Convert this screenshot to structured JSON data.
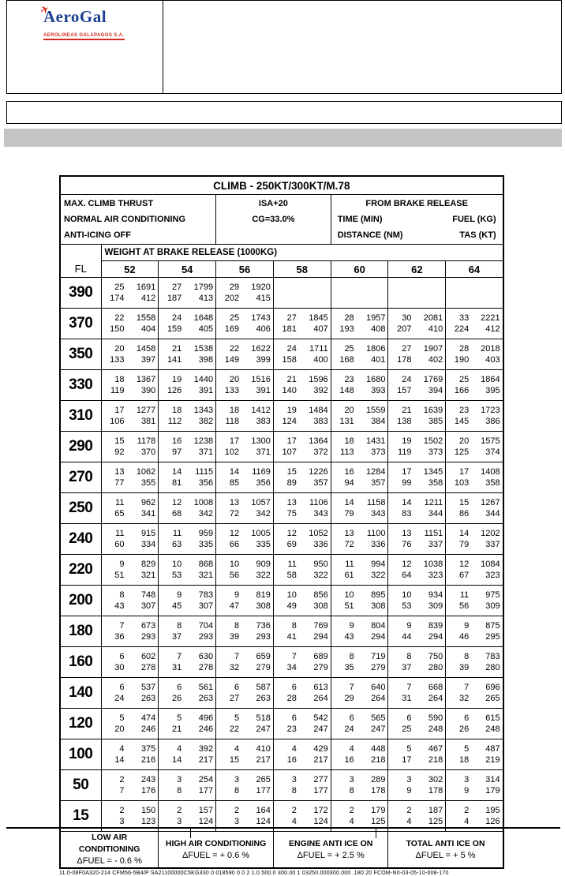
{
  "header": {
    "logo": {
      "brand": "AeroGal",
      "subtitle": "AEROLINEAS GALAPAGOS S.A."
    }
  },
  "table": {
    "title": "CLIMB - 250KT/300KT/M.78",
    "conditions": {
      "left": [
        "MAX. CLIMB THRUST",
        "NORMAL AIR CONDITIONING",
        "ANTI-ICING OFF"
      ],
      "middle": [
        "ISA+20",
        "CG=33.0%"
      ],
      "right": {
        "title": "FROM BRAKE RELEASE",
        "rows": [
          [
            "TIME (MIN)",
            "FUEL (KG)"
          ],
          [
            "DISTANCE (NM)",
            "TAS (KT)"
          ]
        ]
      }
    },
    "weight_header": "WEIGHT AT BRAKE RELEASE (1000KG)",
    "fl_label": "FL",
    "weights": [
      "52",
      "54",
      "56",
      "58",
      "60",
      "62",
      "64"
    ],
    "rows": [
      {
        "fl": "390",
        "cells": [
          [
            "25",
            "1691",
            "174",
            "412"
          ],
          [
            "27",
            "1799",
            "187",
            "413"
          ],
          [
            "29",
            "1920",
            "202",
            "415"
          ],
          null,
          null,
          null,
          null
        ]
      },
      {
        "fl": "370",
        "cells": [
          [
            "22",
            "1558",
            "150",
            "404"
          ],
          [
            "24",
            "1648",
            "159",
            "405"
          ],
          [
            "25",
            "1743",
            "169",
            "406"
          ],
          [
            "27",
            "1845",
            "181",
            "407"
          ],
          [
            "28",
            "1957",
            "193",
            "408"
          ],
          [
            "30",
            "2081",
            "207",
            "410"
          ],
          [
            "33",
            "2221",
            "224",
            "412"
          ]
        ]
      },
      {
        "fl": "350",
        "cells": [
          [
            "20",
            "1458",
            "133",
            "397"
          ],
          [
            "21",
            "1538",
            "141",
            "398"
          ],
          [
            "22",
            "1622",
            "149",
            "399"
          ],
          [
            "24",
            "1711",
            "158",
            "400"
          ],
          [
            "25",
            "1806",
            "168",
            "401"
          ],
          [
            "27",
            "1907",
            "178",
            "402"
          ],
          [
            "28",
            "2018",
            "190",
            "403"
          ]
        ]
      },
      {
        "fl": "330",
        "cells": [
          [
            "18",
            "1367",
            "119",
            "390"
          ],
          [
            "19",
            "1440",
            "126",
            "391"
          ],
          [
            "20",
            "1516",
            "133",
            "391"
          ],
          [
            "21",
            "1596",
            "140",
            "392"
          ],
          [
            "23",
            "1680",
            "148",
            "393"
          ],
          [
            "24",
            "1769",
            "157",
            "394"
          ],
          [
            "25",
            "1864",
            "166",
            "395"
          ]
        ]
      },
      {
        "fl": "310",
        "cells": [
          [
            "17",
            "1277",
            "106",
            "381"
          ],
          [
            "18",
            "1343",
            "112",
            "382"
          ],
          [
            "18",
            "1412",
            "118",
            "383"
          ],
          [
            "19",
            "1484",
            "124",
            "383"
          ],
          [
            "20",
            "1559",
            "131",
            "384"
          ],
          [
            "21",
            "1639",
            "138",
            "385"
          ],
          [
            "23",
            "1723",
            "145",
            "386"
          ]
        ]
      },
      {
        "fl": "290",
        "cells": [
          [
            "15",
            "1178",
            "92",
            "370"
          ],
          [
            "16",
            "1238",
            "97",
            "371"
          ],
          [
            "17",
            "1300",
            "102",
            "371"
          ],
          [
            "17",
            "1364",
            "107",
            "372"
          ],
          [
            "18",
            "1431",
            "113",
            "373"
          ],
          [
            "19",
            "1502",
            "119",
            "373"
          ],
          [
            "20",
            "1575",
            "125",
            "374"
          ]
        ]
      },
      {
        "fl": "270",
        "cells": [
          [
            "13",
            "1062",
            "77",
            "355"
          ],
          [
            "14",
            "1115",
            "81",
            "356"
          ],
          [
            "14",
            "1169",
            "85",
            "356"
          ],
          [
            "15",
            "1226",
            "89",
            "357"
          ],
          [
            "16",
            "1284",
            "94",
            "357"
          ],
          [
            "17",
            "1345",
            "99",
            "358"
          ],
          [
            "17",
            "1408",
            "103",
            "358"
          ]
        ]
      },
      {
        "fl": "250",
        "cells": [
          [
            "11",
            "962",
            "65",
            "341"
          ],
          [
            "12",
            "1008",
            "68",
            "342"
          ],
          [
            "13",
            "1057",
            "72",
            "342"
          ],
          [
            "13",
            "1106",
            "75",
            "343"
          ],
          [
            "14",
            "1158",
            "79",
            "343"
          ],
          [
            "14",
            "1211",
            "83",
            "344"
          ],
          [
            "15",
            "1267",
            "86",
            "344"
          ]
        ]
      },
      {
        "fl": "240",
        "cells": [
          [
            "11",
            "915",
            "60",
            "334"
          ],
          [
            "11",
            "959",
            "63",
            "335"
          ],
          [
            "12",
            "1005",
            "66",
            "335"
          ],
          [
            "12",
            "1052",
            "69",
            "336"
          ],
          [
            "13",
            "1100",
            "72",
            "336"
          ],
          [
            "13",
            "1151",
            "76",
            "337"
          ],
          [
            "14",
            "1202",
            "79",
            "337"
          ]
        ]
      },
      {
        "fl": "220",
        "cells": [
          [
            "9",
            "829",
            "51",
            "321"
          ],
          [
            "10",
            "868",
            "53",
            "321"
          ],
          [
            "10",
            "909",
            "56",
            "322"
          ],
          [
            "11",
            "950",
            "58",
            "322"
          ],
          [
            "11",
            "994",
            "61",
            "322"
          ],
          [
            "12",
            "1038",
            "64",
            "323"
          ],
          [
            "12",
            "1084",
            "67",
            "323"
          ]
        ]
      },
      {
        "fl": "200",
        "cells": [
          [
            "8",
            "748",
            "43",
            "307"
          ],
          [
            "9",
            "783",
            "45",
            "307"
          ],
          [
            "9",
            "819",
            "47",
            "308"
          ],
          [
            "10",
            "856",
            "49",
            "308"
          ],
          [
            "10",
            "895",
            "51",
            "308"
          ],
          [
            "10",
            "934",
            "53",
            "309"
          ],
          [
            "11",
            "975",
            "56",
            "309"
          ]
        ]
      },
      {
        "fl": "180",
        "cells": [
          [
            "7",
            "673",
            "36",
            "293"
          ],
          [
            "8",
            "704",
            "37",
            "293"
          ],
          [
            "8",
            "736",
            "39",
            "293"
          ],
          [
            "8",
            "769",
            "41",
            "294"
          ],
          [
            "9",
            "804",
            "43",
            "294"
          ],
          [
            "9",
            "839",
            "44",
            "294"
          ],
          [
            "9",
            "875",
            "46",
            "295"
          ]
        ]
      },
      {
        "fl": "160",
        "cells": [
          [
            "6",
            "602",
            "30",
            "278"
          ],
          [
            "7",
            "630",
            "31",
            "278"
          ],
          [
            "7",
            "659",
            "32",
            "279"
          ],
          [
            "7",
            "689",
            "34",
            "279"
          ],
          [
            "8",
            "719",
            "35",
            "279"
          ],
          [
            "8",
            "750",
            "37",
            "280"
          ],
          [
            "8",
            "783",
            "39",
            "280"
          ]
        ]
      },
      {
        "fl": "140",
        "cells": [
          [
            "6",
            "537",
            "24",
            "263"
          ],
          [
            "6",
            "561",
            "26",
            "263"
          ],
          [
            "6",
            "587",
            "27",
            "263"
          ],
          [
            "6",
            "613",
            "28",
            "264"
          ],
          [
            "7",
            "640",
            "29",
            "264"
          ],
          [
            "7",
            "668",
            "31",
            "264"
          ],
          [
            "7",
            "696",
            "32",
            "265"
          ]
        ]
      },
      {
        "fl": "120",
        "cells": [
          [
            "5",
            "474",
            "20",
            "246"
          ],
          [
            "5",
            "496",
            "21",
            "246"
          ],
          [
            "5",
            "518",
            "22",
            "247"
          ],
          [
            "6",
            "542",
            "23",
            "247"
          ],
          [
            "6",
            "565",
            "24",
            "247"
          ],
          [
            "6",
            "590",
            "25",
            "248"
          ],
          [
            "6",
            "615",
            "26",
            "248"
          ]
        ]
      },
      {
        "fl": "100",
        "cells": [
          [
            "4",
            "375",
            "14",
            "216"
          ],
          [
            "4",
            "392",
            "14",
            "217"
          ],
          [
            "4",
            "410",
            "15",
            "217"
          ],
          [
            "4",
            "429",
            "16",
            "217"
          ],
          [
            "4",
            "448",
            "16",
            "218"
          ],
          [
            "5",
            "467",
            "17",
            "218"
          ],
          [
            "5",
            "487",
            "18",
            "219"
          ]
        ]
      },
      {
        "fl": "50",
        "cells": [
          [
            "2",
            "243",
            "7",
            "176"
          ],
          [
            "3",
            "254",
            "8",
            "177"
          ],
          [
            "3",
            "265",
            "8",
            "177"
          ],
          [
            "3",
            "277",
            "8",
            "177"
          ],
          [
            "3",
            "289",
            "8",
            "178"
          ],
          [
            "3",
            "302",
            "9",
            "178"
          ],
          [
            "3",
            "314",
            "9",
            "179"
          ]
        ]
      },
      {
        "fl": "15",
        "cells": [
          [
            "2",
            "150",
            "3",
            "123"
          ],
          [
            "2",
            "157",
            "3",
            "124"
          ],
          [
            "2",
            "164",
            "3",
            "124"
          ],
          [
            "2",
            "172",
            "4",
            "124"
          ],
          [
            "2",
            "179",
            "4",
            "125"
          ],
          [
            "2",
            "187",
            "4",
            "125"
          ],
          [
            "2",
            "195",
            "4",
            "126"
          ]
        ]
      }
    ],
    "footer": [
      {
        "title": "LOW AIR CONDITIONING",
        "value": "ΔFUEL = - 0.6 %"
      },
      {
        "title": "HIGH AIR CONDITIONING",
        "value": "ΔFUEL = + 0.6 %"
      },
      {
        "title": "ENGINE ANTI ICE ON",
        "value": "ΔFUEL = + 2.5 %"
      },
      {
        "title": "TOTAL ANTI ICE ON",
        "value": "ΔFUEL = + 5 %"
      }
    ]
  },
  "code_line": "11.0-08F0A320-214 CFM56-5B4/P SA21100000C5KG330 0 018590 0 0 2 1.0 500.0 300.00 1 03250.000300.000 .180 20 FCOM-N0-03-05-10-008-170"
}
